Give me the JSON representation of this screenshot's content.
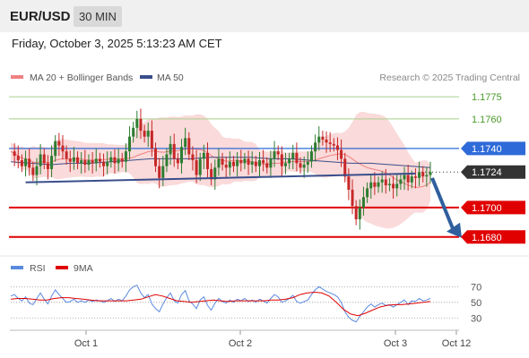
{
  "header": {
    "symbol": "EUR/USD",
    "timeframe": "30 MIN"
  },
  "timestamp": "Friday, October 3, 2025 5:13:23 AM CET",
  "legend": {
    "bb_label": "MA 20 + Bollinger Bands",
    "ma50_label": "MA 50",
    "copyright": "Research © 2025 Trading Central",
    "rsi_label": "RSI",
    "rsi_ma_label": "9MA"
  },
  "colors": {
    "bb_fill": "#fadada",
    "bb_line": "#f08080",
    "ma50": "#3a4e8c",
    "candle_up": "#2e7d32",
    "candle_down": "#c62828",
    "resistance_green": "#a8d08d",
    "pivot_blue": "#2f6bd8",
    "support_red": "#e00000",
    "current": "#333333",
    "rsi": "#5a8ae0",
    "rsi_ma": "#e00000",
    "arrow": "#2f5f9e"
  },
  "chart_data": [
    {
      "type": "line",
      "title": "EUR/USD 30 MIN",
      "x_ticks": [
        "Oct 1",
        "Oct 2",
        "Oct 3",
        "Oct 12"
      ],
      "ylim": [
        1.1672,
        1.1786
      ],
      "levels": [
        {
          "label": "1.1775",
          "value": 1.1775,
          "kind": "resistance"
        },
        {
          "label": "1.1760",
          "value": 1.176,
          "kind": "resistance"
        },
        {
          "label": "1.1740",
          "value": 1.174,
          "kind": "pivot"
        },
        {
          "label": "1.1724",
          "value": 1.1724,
          "kind": "current"
        },
        {
          "label": "1.1700",
          "value": 1.17,
          "kind": "support"
        },
        {
          "label": "1.1680",
          "value": 1.168,
          "kind": "support"
        }
      ],
      "series": [
        {
          "name": "Close",
          "values": [
            1.1738,
            1.1735,
            1.1732,
            1.1728,
            1.1733,
            1.1727,
            1.1722,
            1.1728,
            1.1736,
            1.173,
            1.1726,
            1.1735,
            1.1745,
            1.1742,
            1.1738,
            1.1733,
            1.1731,
            1.1734,
            1.173,
            1.1732,
            1.1729,
            1.1732,
            1.173,
            1.1733,
            1.1731,
            1.1728,
            1.1731,
            1.1734,
            1.173,
            1.1733,
            1.1731,
            1.1738,
            1.1748,
            1.1754,
            1.176,
            1.1752,
            1.1748,
            1.1752,
            1.174,
            1.1728,
            1.172,
            1.1728,
            1.1736,
            1.1743,
            1.1733,
            1.173,
            1.1741,
            1.1747,
            1.1736,
            1.1732,
            1.1722,
            1.1733,
            1.1737,
            1.1726,
            1.1719,
            1.1727,
            1.1733,
            1.1729,
            1.1727,
            1.1731,
            1.1728,
            1.1732,
            1.173,
            1.1733,
            1.1729,
            1.1731,
            1.1728,
            1.1732,
            1.173,
            1.1727,
            1.1733,
            1.1738,
            1.1736,
            1.1728,
            1.173,
            1.1733,
            1.1737,
            1.173,
            1.1727,
            1.1729,
            1.1731,
            1.1738,
            1.1744,
            1.1748,
            1.1746,
            1.1744,
            1.1743,
            1.1742,
            1.1739,
            1.1733,
            1.1721,
            1.1712,
            1.1701,
            1.1692,
            1.17,
            1.1707,
            1.1713,
            1.1717,
            1.1714,
            1.1717,
            1.1719,
            1.1715,
            1.1716,
            1.1713,
            1.1716,
            1.1719,
            1.1722,
            1.1717,
            1.1721,
            1.172,
            1.1724,
            1.1721,
            1.1722,
            1.1724
          ]
        },
        {
          "name": "MA 50",
          "values": [
            1.1731,
            1.173,
            1.1729,
            1.173,
            1.173,
            1.1731,
            1.1732,
            1.1733,
            1.1733,
            1.1733,
            1.1734,
            1.1734,
            1.1734,
            1.1733,
            1.1733,
            1.1732,
            1.1731,
            1.173,
            1.173,
            1.1729,
            1.1728,
            1.1727
          ]
        }
      ],
      "trendlines": [
        {
          "label": "",
          "from": {
            "index": 4,
            "value": 1.1717
          },
          "to": {
            "index": 109,
            "value": 1.1723
          }
        }
      ],
      "forecast": {
        "from_value": 1.172,
        "to_value": 1.168
      }
    },
    {
      "type": "line",
      "title": "RSI",
      "ylim": [
        20,
        75
      ],
      "y_ticks": [
        70,
        50,
        30
      ],
      "series": [
        {
          "name": "RSI",
          "values": [
            58,
            60,
            55,
            52,
            57,
            49,
            47,
            55,
            62,
            54,
            48,
            58,
            66,
            60,
            55,
            50,
            51,
            54,
            50,
            52,
            50,
            53,
            51,
            53,
            52,
            50,
            52,
            55,
            51,
            54,
            52,
            58,
            66,
            70,
            72,
            62,
            56,
            60,
            48,
            42,
            38,
            48,
            56,
            62,
            52,
            49,
            60,
            65,
            52,
            48,
            42,
            53,
            57,
            46,
            40,
            49,
            55,
            51,
            49,
            53,
            50,
            54,
            52,
            55,
            51,
            53,
            50,
            54,
            52,
            49,
            55,
            60,
            57,
            50,
            52,
            55,
            59,
            51,
            49,
            51,
            53,
            60,
            66,
            70,
            67,
            64,
            62,
            60,
            57,
            50,
            38,
            31,
            27,
            25,
            32,
            38,
            44,
            48,
            44,
            47,
            49,
            46,
            47,
            44,
            47,
            50,
            53,
            47,
            52,
            51,
            55,
            52,
            53,
            55
          ]
        },
        {
          "name": "9MA",
          "values": [
            54,
            55,
            55,
            54,
            53,
            53,
            55,
            56,
            56,
            55,
            54,
            53,
            52,
            52,
            52,
            52,
            52,
            53,
            54,
            57,
            60,
            58,
            55,
            52,
            51,
            50,
            51,
            52,
            53,
            52,
            51,
            52,
            52,
            52,
            52,
            52,
            53,
            53,
            54,
            56,
            60,
            62,
            63,
            62,
            58,
            50,
            41,
            35,
            33,
            36,
            40,
            44,
            46,
            47,
            47,
            48,
            49,
            50,
            51
          ]
        }
      ]
    }
  ]
}
